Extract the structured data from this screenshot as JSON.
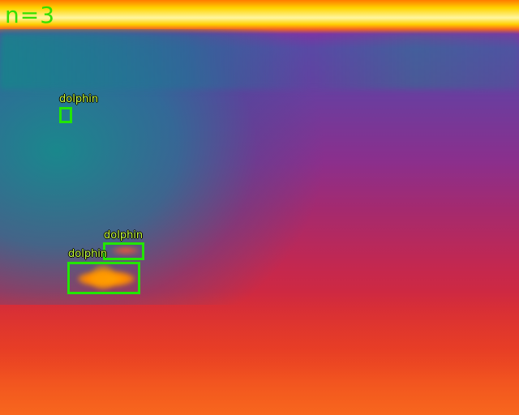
{
  "overlay": {
    "count_text": "n=3",
    "box_color": "#22e600",
    "label_color": "#c8ff40"
  },
  "detections": [
    {
      "label": "dolphin"
    },
    {
      "label": "dolphin"
    },
    {
      "label": "dolphin"
    }
  ]
}
